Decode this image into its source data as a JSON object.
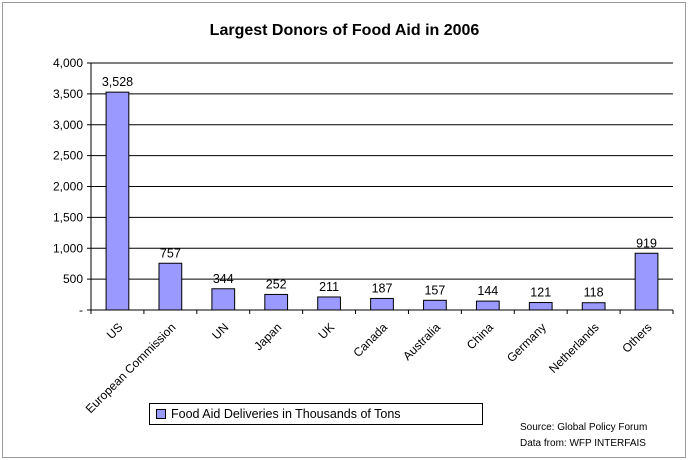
{
  "chart_data": {
    "type": "bar",
    "title": "Largest Donors of Food Aid in 2006",
    "categories": [
      "US",
      "European Commission",
      "UN",
      "Japan",
      "UK",
      "Canada",
      "Australia",
      "China",
      "Germany",
      "Netherlands",
      "Others"
    ],
    "series": [
      {
        "name": "Food Aid Deliveries in Thousands of Tons",
        "values": [
          3528,
          757,
          344,
          252,
          211,
          187,
          157,
          144,
          121,
          118,
          919
        ],
        "labels": [
          "3,528",
          "757",
          "344",
          "252",
          "211",
          "187",
          "157",
          "144",
          "121",
          "118",
          "919"
        ]
      }
    ],
    "ylim": [
      0,
      4000
    ],
    "yticks": [
      0,
      500,
      1000,
      1500,
      2000,
      2500,
      3000,
      3500,
      4000
    ],
    "ytick_labels": [
      "-",
      "500",
      "1,000",
      "1,500",
      "2,000",
      "2,500",
      "3,000",
      "3,500",
      "4,000"
    ],
    "grid": true,
    "legend_position": "bottom",
    "bar_color": "#9999ff"
  },
  "source": {
    "line1": "Source: Global Policy Forum",
    "line2": "Data from: WFP INTERFAIS"
  }
}
